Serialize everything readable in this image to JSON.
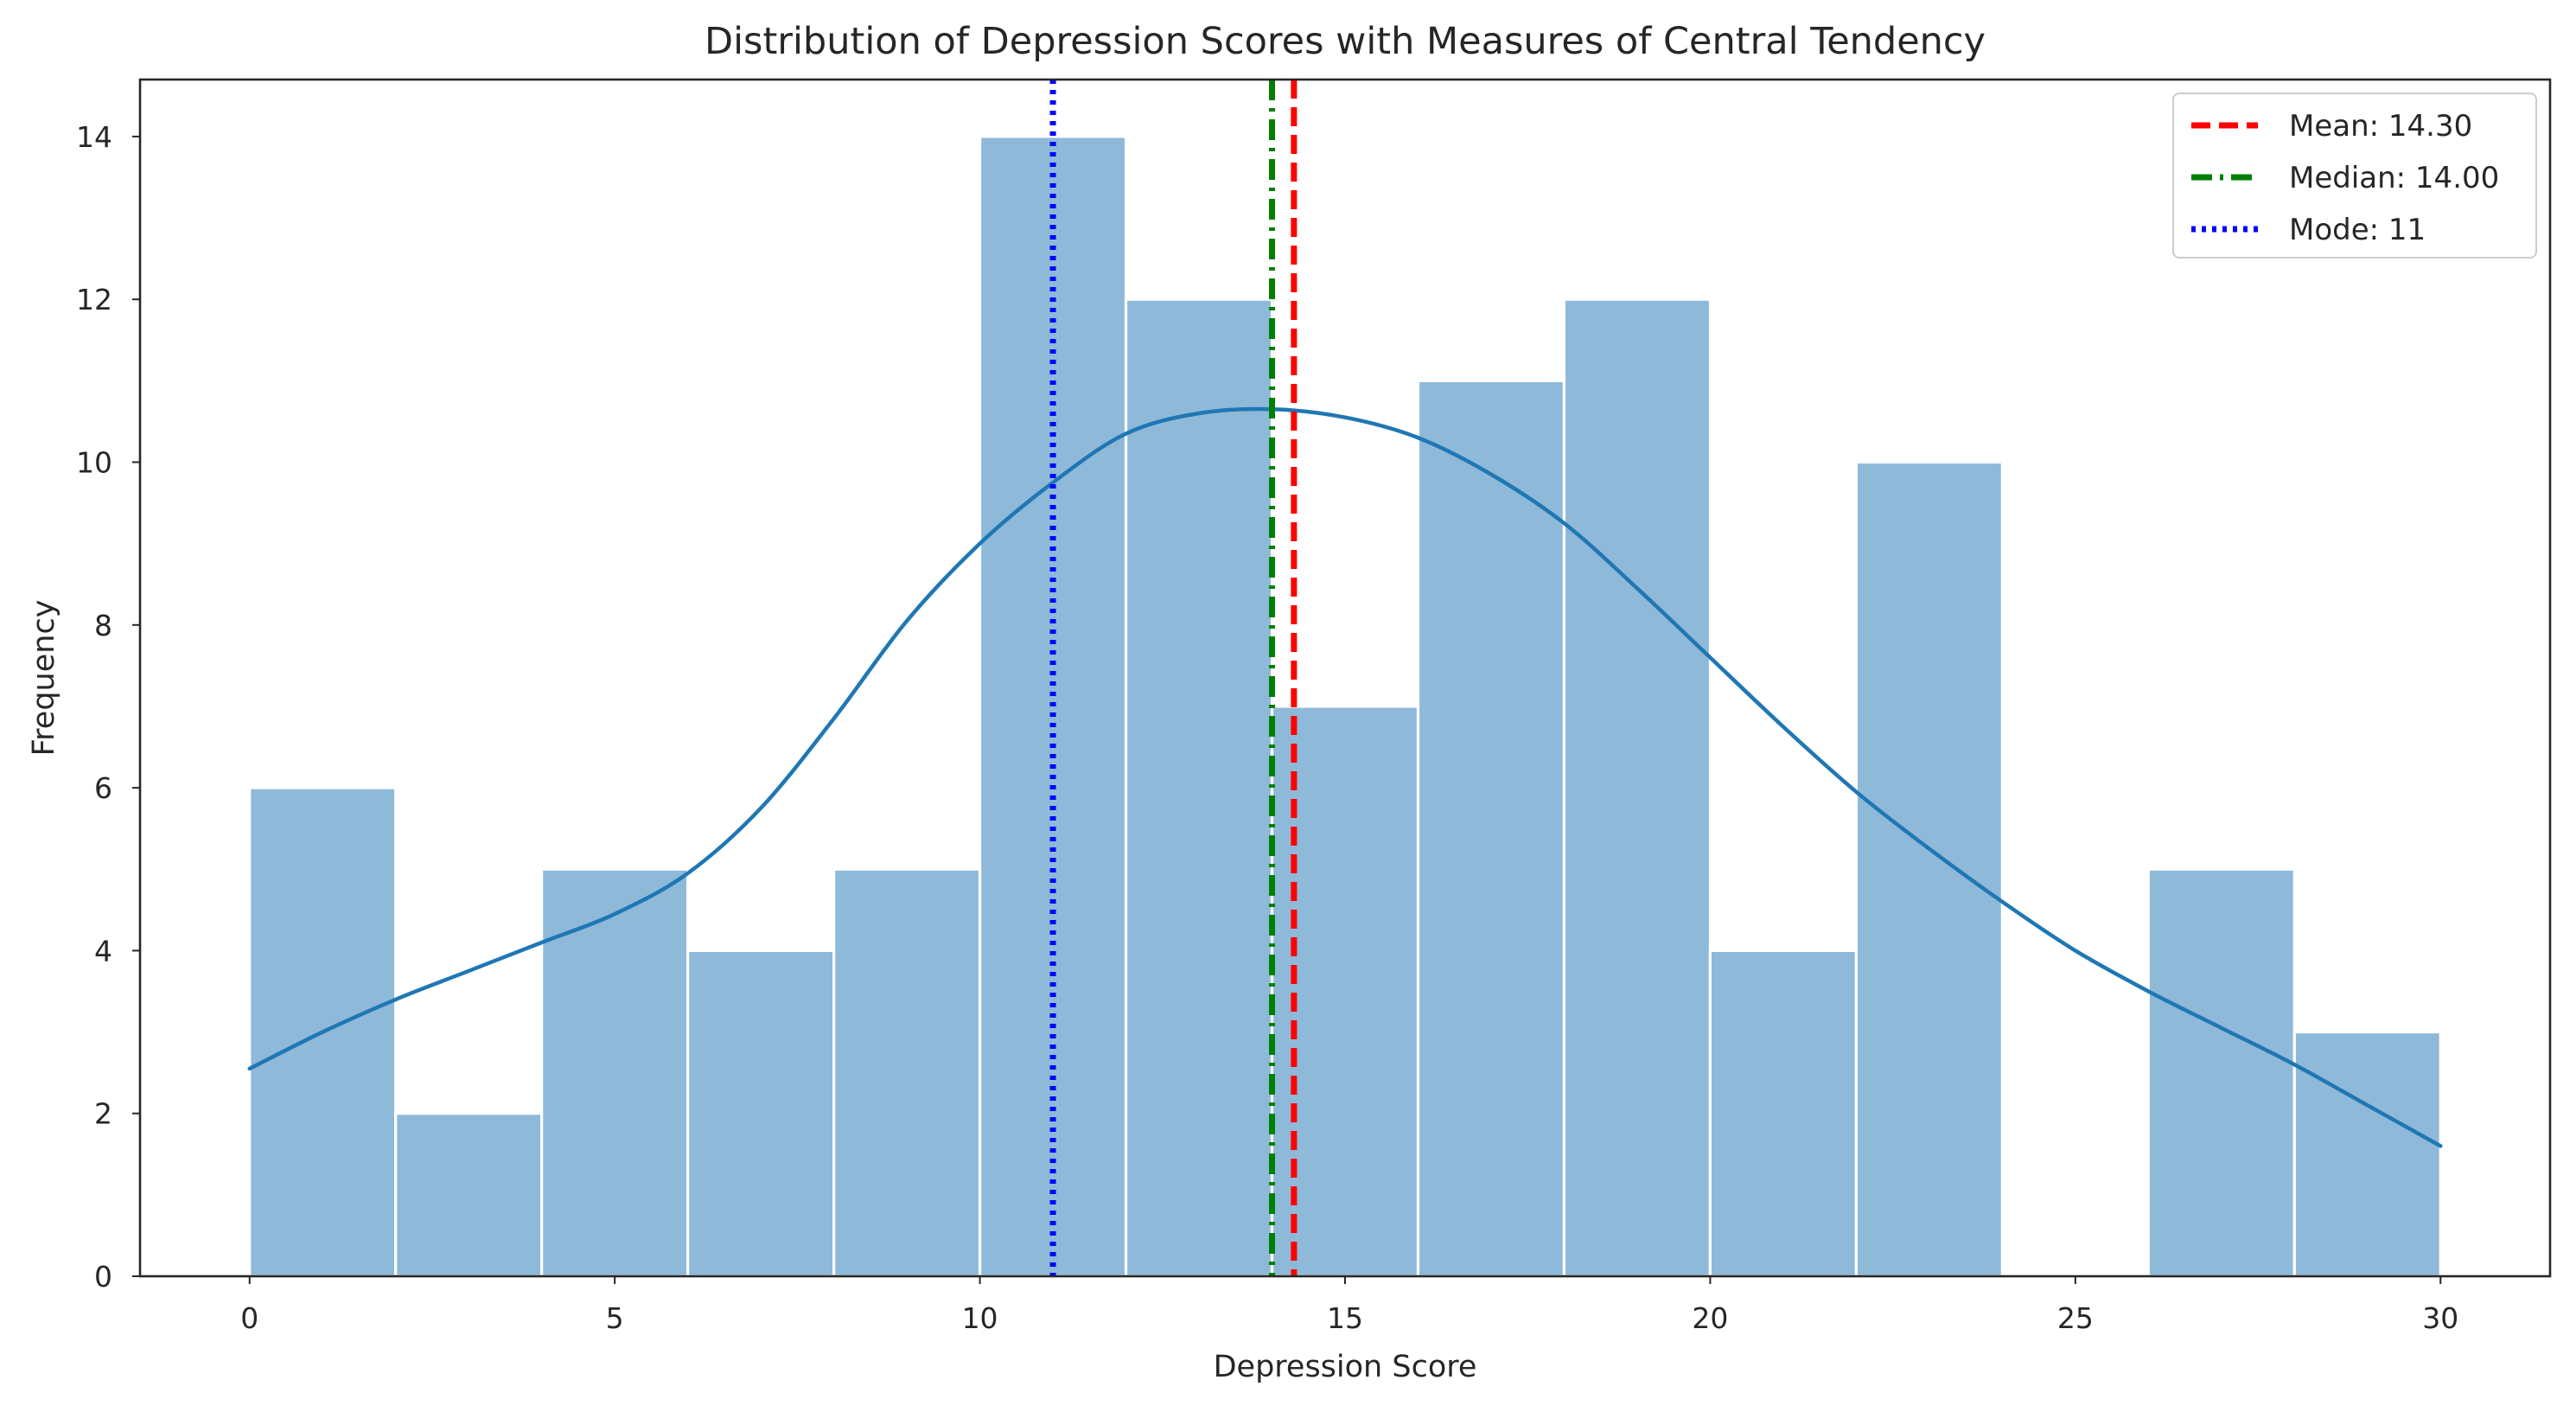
{
  "chart_data": {
    "type": "bar",
    "title": "Distribution of Depression Scores with Measures of Central Tendency",
    "xlabel": "Depression Score",
    "ylabel": "Frequency",
    "xlim": [
      -1.5,
      31.5
    ],
    "ylim": [
      0,
      14.7
    ],
    "x_ticks": [
      0,
      5,
      10,
      15,
      20,
      25,
      30
    ],
    "y_ticks": [
      0,
      2,
      4,
      6,
      8,
      10,
      12,
      14
    ],
    "grid": false,
    "bins": {
      "start": 0,
      "width": 2,
      "edges": [
        0,
        2,
        4,
        6,
        8,
        10,
        12,
        14,
        16,
        18,
        20,
        22,
        24,
        26,
        28,
        30
      ],
      "counts": [
        6,
        2,
        5,
        4,
        5,
        14,
        12,
        7,
        11,
        12,
        4,
        10,
        0,
        5,
        3
      ]
    },
    "bar_color": "#8fb9d9",
    "kde": {
      "name": "KDE",
      "color": "#1f77b4",
      "x": [
        0,
        1,
        2,
        3,
        4,
        5,
        6,
        7,
        8,
        9,
        10,
        11,
        12,
        13,
        14,
        15,
        16,
        17,
        18,
        19,
        20,
        21,
        22,
        23,
        24,
        25,
        26,
        27,
        28,
        29,
        30
      ],
      "y": [
        2.55,
        3.0,
        3.4,
        3.75,
        4.1,
        4.45,
        4.95,
        5.75,
        6.85,
        8.05,
        9.0,
        9.75,
        10.35,
        10.6,
        10.65,
        10.55,
        10.3,
        9.85,
        9.25,
        8.45,
        7.6,
        6.75,
        5.95,
        5.25,
        4.6,
        4.0,
        3.5,
        3.05,
        2.6,
        2.1,
        1.6
      ]
    },
    "reference_lines": [
      {
        "name": "Mean",
        "label": "Mean: 14.30",
        "value": 14.3,
        "color": "#ff0000",
        "style": "dashed"
      },
      {
        "name": "Median",
        "label": "Median: 14.00",
        "value": 14.0,
        "color": "#008000",
        "style": "dashdot"
      },
      {
        "name": "Mode",
        "label": "Mode: 11",
        "value": 11,
        "color": "#0000ff",
        "style": "dotted"
      }
    ],
    "legend": {
      "position": "top-right"
    }
  }
}
